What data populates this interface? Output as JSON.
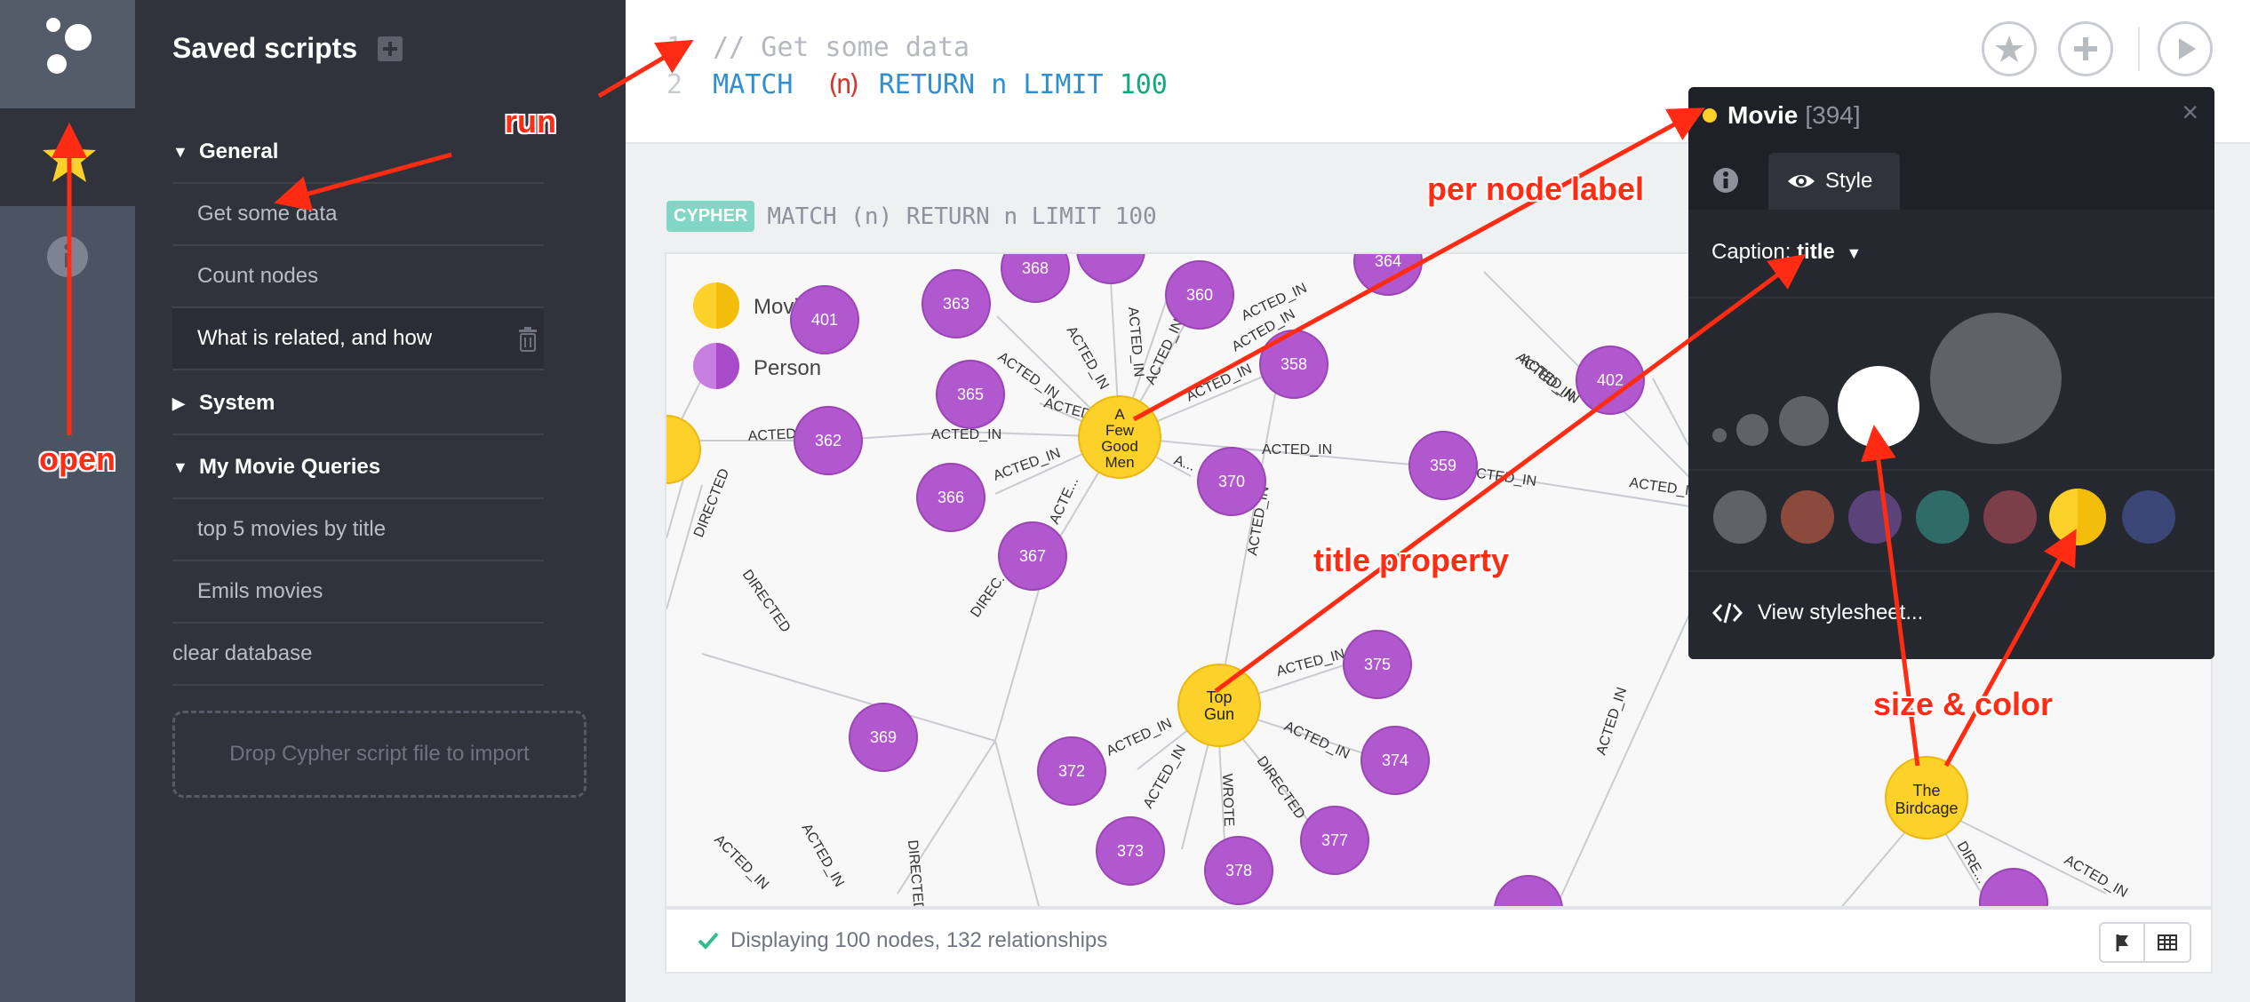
{
  "sidebar": {
    "title": "Saved scripts"
  },
  "folders": [
    {
      "label": "General",
      "items": [
        "Get some data",
        "Count nodes",
        "What is related, and how"
      ]
    },
    {
      "label": "System",
      "items": []
    },
    {
      "label": "My Movie Queries",
      "items": [
        "top 5 movies by title",
        "Emils movies"
      ]
    }
  ],
  "loose_item": "clear database",
  "dropzone": "Drop Cypher script file to import",
  "editor": {
    "line1_no": "1",
    "line2_no": "2",
    "line1": "// Get some data",
    "kw_match": "MATCH",
    "paren_open": "(",
    "var": "n",
    "paren_close": ")",
    "kw_return": "RETURN",
    "ret_var": "n",
    "kw_limit": "LIMIT",
    "limit": "100"
  },
  "frame": {
    "tag": "CYPHER",
    "query": "MATCH (n) RETURN n LIMIT 100"
  },
  "legend": {
    "movie": "Movie",
    "person": "Person"
  },
  "graph": {
    "nodes": {
      "n368": "368",
      "n363": "363",
      "n360": "360",
      "n364": "364",
      "n401": "401",
      "n365": "365",
      "n358": "358",
      "n402": "402",
      "n362": "362",
      "n370": "370",
      "n359": "359",
      "n366": "366",
      "n367": "367",
      "n375": "375",
      "n374": "374",
      "n369": "369",
      "n372": "372",
      "n373": "373",
      "n378": "378",
      "n377": "377",
      "afgm1": "A",
      "afgm2": "Few",
      "afgm3": "Good",
      "afgm4": "Men",
      "tg1": "Top",
      "tg2": "Gun",
      "bc1": "The",
      "bc2": "Birdcage"
    },
    "rels": {
      "acted_in": "ACTED_IN",
      "acted_trunc": "ACTED...",
      "acte_trunc": "ACTE...",
      "a_trunc": "A...",
      "directed": "DIRECTED",
      "direc_trunc": "DIREC...",
      "dire_trunc": "DIRE...",
      "wrote": "WROTE"
    }
  },
  "status": {
    "text": "Displaying 100 nodes, 132 relationships"
  },
  "popover": {
    "label": "Movie",
    "count": "[394]",
    "close": "×",
    "tab_style": "Style",
    "caption_prefix": "Caption:",
    "caption_value": "title",
    "view_stylesheet": "View stylesheet..."
  },
  "annotations": {
    "run": "run",
    "open": "open",
    "per_node_label": "per node label",
    "title_property": "title property",
    "size_color": "size & color"
  },
  "colors": {
    "movie": "#fcd129",
    "person": "#b258cf",
    "accent": "#ff2c13",
    "swatches": [
      "#5f6368",
      "#8b4a3c",
      "#5a4378",
      "#2f6b67",
      "#7c3f4a",
      "#fcd129",
      "#3a4675"
    ]
  },
  "icons": [
    "logo-icon",
    "star-icon",
    "info-icon",
    "add-folder-icon",
    "trash-icon",
    "favorite-icon",
    "add-icon",
    "play-icon",
    "eye-icon",
    "code-icon",
    "check-icon",
    "graph-view-icon",
    "table-view-icon"
  ]
}
